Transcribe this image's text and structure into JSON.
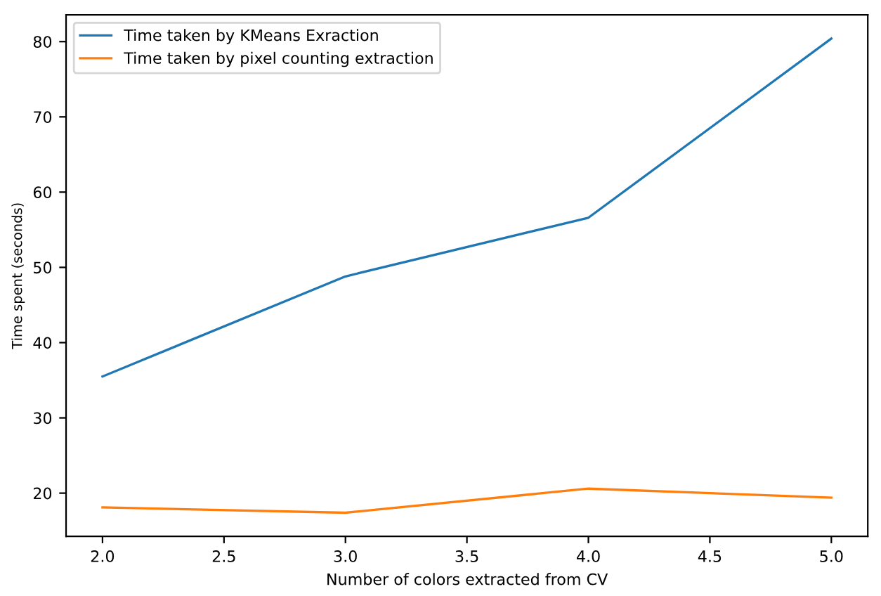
{
  "chart_data": {
    "type": "line",
    "xlabel": "Number of colors extracted from CV",
    "ylabel": "Time spent (seconds)",
    "x": [
      2.0,
      3.0,
      4.0,
      5.0
    ],
    "series": [
      {
        "name": "Time taken by KMeans Exraction",
        "color": "#1f77b4",
        "values": [
          35.5,
          48.8,
          56.6,
          80.4
        ]
      },
      {
        "name": "Time taken by pixel counting extraction",
        "color": "#ff7f0e",
        "values": [
          18.1,
          17.4,
          20.6,
          19.4
        ]
      }
    ],
    "xlim": [
      1.85,
      5.15
    ],
    "xticks": [
      {
        "value": 2.0,
        "label": "2.0"
      },
      {
        "value": 2.5,
        "label": "2.5"
      },
      {
        "value": 3.0,
        "label": "3.0"
      },
      {
        "value": 3.5,
        "label": "3.5"
      },
      {
        "value": 4.0,
        "label": "4.0"
      },
      {
        "value": 4.5,
        "label": "4.5"
      },
      {
        "value": 5.0,
        "label": "5.0"
      }
    ],
    "ylim": [
      14.25,
      83.55
    ],
    "yticks": [
      20,
      30,
      40,
      50,
      60,
      70,
      80
    ],
    "legend": "top left",
    "grid": false,
    "marker": "none",
    "line_style": "solid"
  }
}
